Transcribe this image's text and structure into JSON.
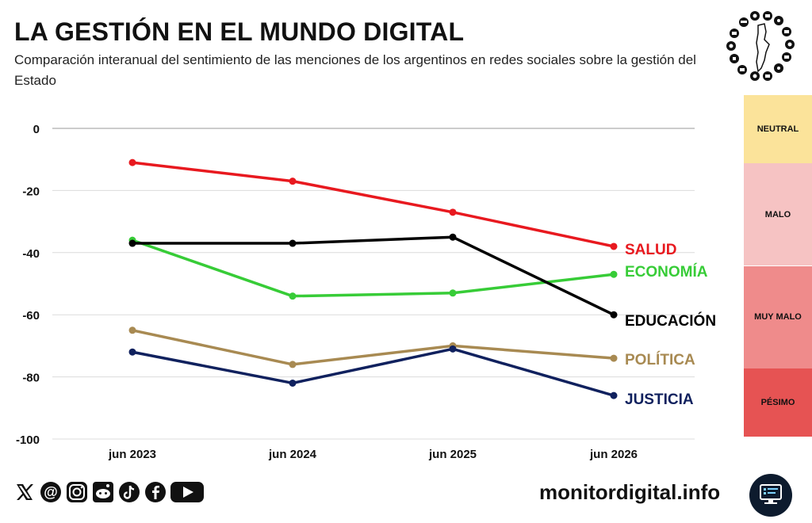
{
  "header": {
    "title": "LA GESTIÓN EN EL MUNDO DIGITAL",
    "subtitle": "Comparación interanual del sentimiento de las menciones de los argentinos en redes sociales sobre la gestión del Estado"
  },
  "logo": {
    "icon": "argentina-map-icons-logo"
  },
  "chart_data": {
    "type": "line",
    "title": "",
    "xlabel": "",
    "ylabel": "",
    "categories": [
      "jun 2023",
      "jun 2024",
      "jun 2025",
      "jun 2026"
    ],
    "ylim": [
      -100,
      0
    ],
    "yticks": [
      0,
      -20,
      -40,
      -60,
      -80,
      -100
    ],
    "grid": true,
    "legend": "labels at line ends (right)",
    "series": [
      {
        "name": "SALUD",
        "color": "#e8191f",
        "values": [
          -11,
          -17,
          -27,
          -38
        ]
      },
      {
        "name": "ECONOMÍA",
        "color": "#37cc37",
        "values": [
          -36,
          -54,
          -53,
          -47
        ]
      },
      {
        "name": "EDUCACIÓN",
        "color": "#000000",
        "values": [
          -37,
          -37,
          -35,
          -60
        ]
      },
      {
        "name": "POLÍTICA",
        "color": "#a88a52",
        "values": [
          -65,
          -76,
          -70,
          -74
        ]
      },
      {
        "name": "JUSTICIA",
        "color": "#10215e",
        "values": [
          -72,
          -82,
          -71,
          -86
        ]
      }
    ]
  },
  "sentiment_bands": [
    {
      "label": "NEUTRAL",
      "color": "#fbe39a",
      "from": 0,
      "to": -20
    },
    {
      "label": "MALO",
      "color": "#f6c3c3",
      "from": -20,
      "to": -50
    },
    {
      "label": "MUY MALO",
      "color": "#ef8b8b",
      "from": -50,
      "to": -80
    },
    {
      "label": "PÉSIMO",
      "color": "#e65353",
      "from": -80,
      "to": -100
    }
  ],
  "footer": {
    "social_icons": [
      "x-icon",
      "threads-icon",
      "instagram-icon",
      "reddit-icon",
      "tiktok-icon",
      "facebook-icon",
      "youtube-icon"
    ],
    "site": "monitordigital.info",
    "site_icon": "monitor-icon"
  }
}
